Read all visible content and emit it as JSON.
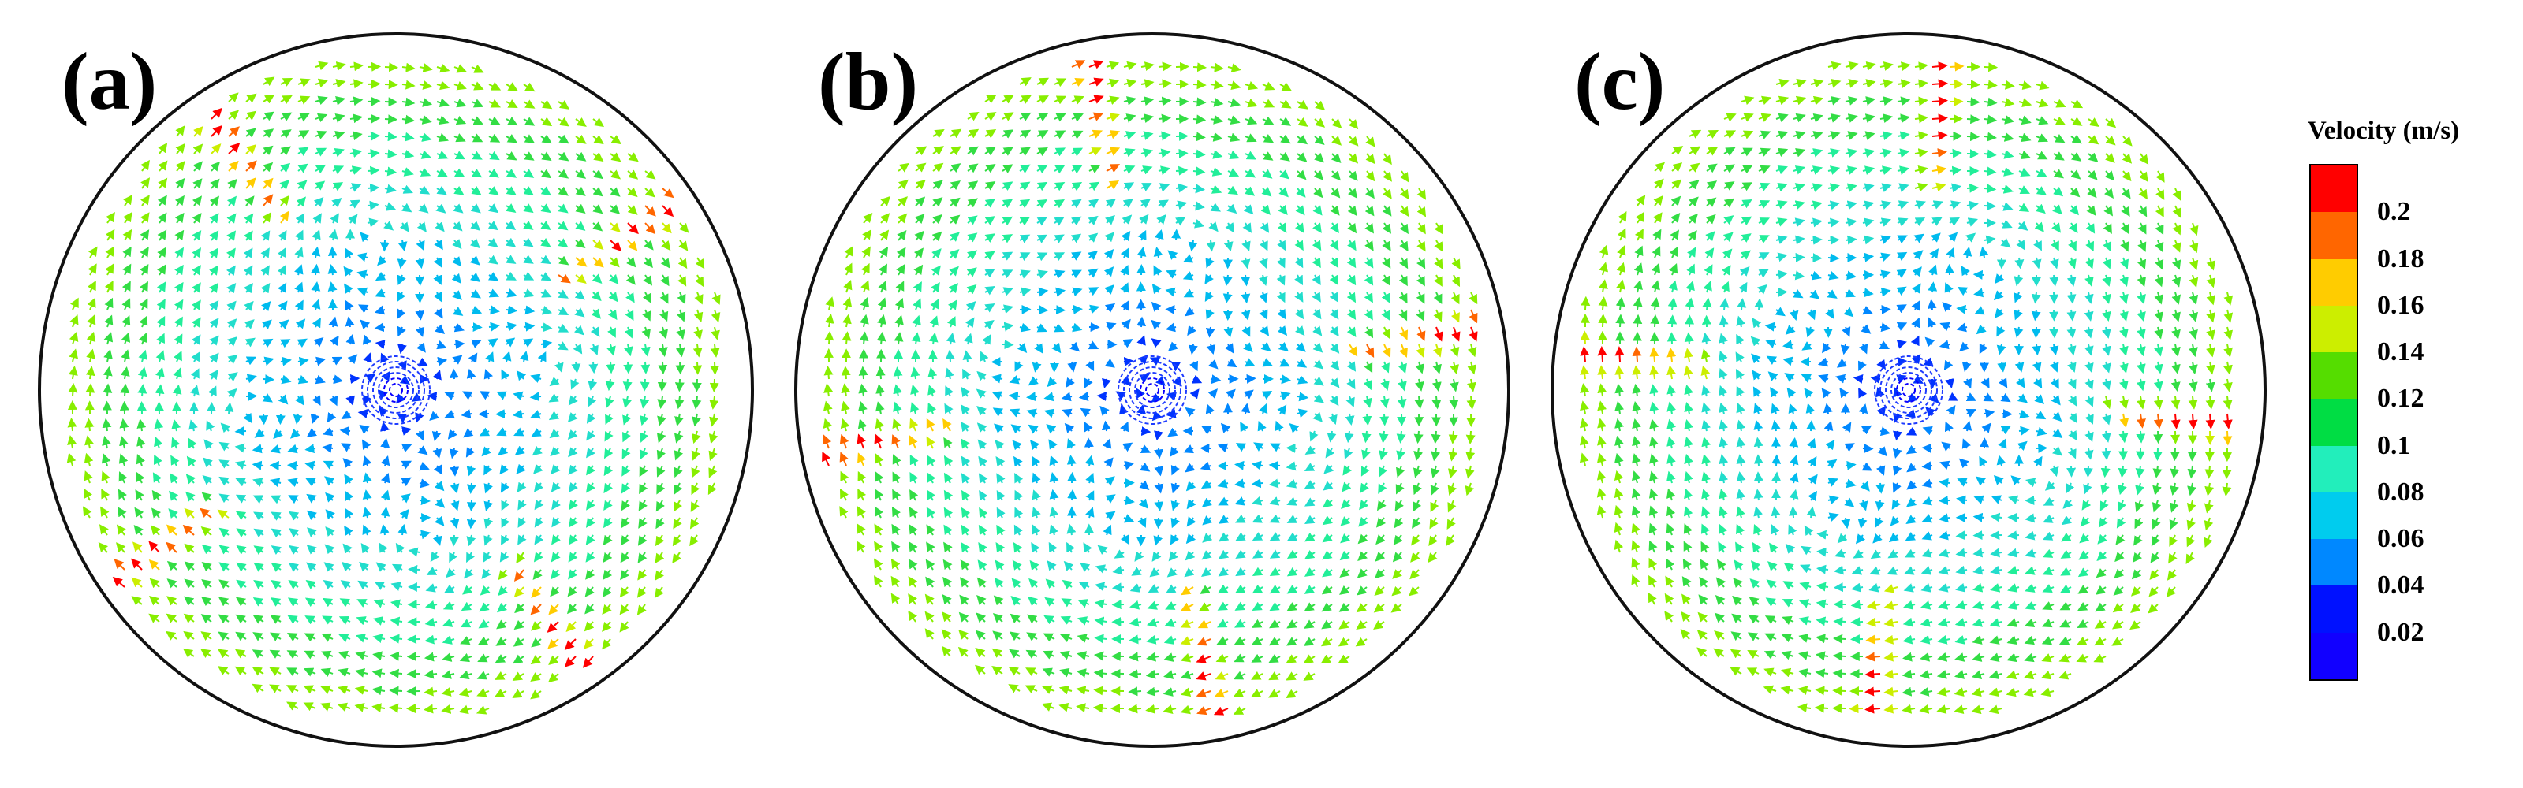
{
  "panels": [
    {
      "id": "a",
      "label": "(a)"
    },
    {
      "id": "b",
      "label": "(b)"
    },
    {
      "id": "c",
      "label": "(c)"
    }
  ],
  "legend": {
    "title": "Velocity (m/s)",
    "ticks": [
      "0.2",
      "0.18",
      "0.16",
      "0.14",
      "0.12",
      "0.1",
      "0.08",
      "0.06",
      "0.04",
      "0.02"
    ],
    "colors": [
      "#ff0000",
      "#ff6600",
      "#ffcc00",
      "#ccee00",
      "#55dd00",
      "#00dd44",
      "#22eebb",
      "#00ccee",
      "#0088ff",
      "#0011ff",
      "#1100ff"
    ]
  }
}
